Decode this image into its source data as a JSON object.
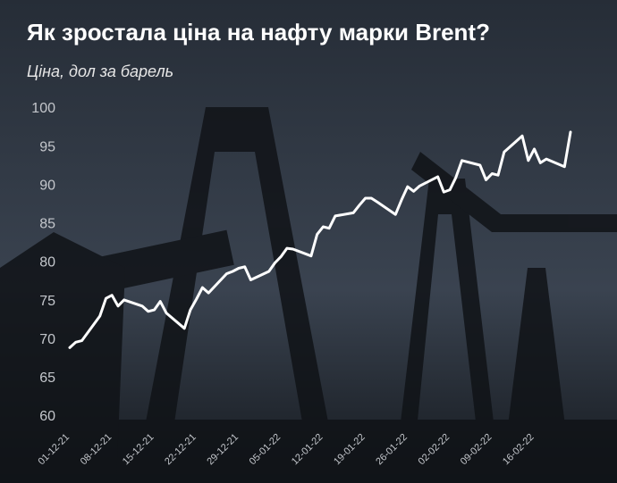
{
  "chart_data": {
    "type": "line",
    "title": "Як зростала ціна на нафту марки Brent?",
    "subtitle": "Ціна, дол за барель",
    "x": [
      "01-12-21",
      "02-12-21",
      "03-12-21",
      "06-12-21",
      "07-12-21",
      "08-12-21",
      "09-12-21",
      "10-12-21",
      "13-12-21",
      "14-12-21",
      "15-12-21",
      "16-12-21",
      "17-12-21",
      "20-12-21",
      "21-12-21",
      "22-12-21",
      "23-12-21",
      "24-12-21",
      "27-12-21",
      "28-12-21",
      "29-12-21",
      "30-12-21",
      "31-12-21",
      "03-01-22",
      "04-01-22",
      "05-01-22",
      "06-01-22",
      "07-01-22",
      "10-01-22",
      "11-01-22",
      "12-01-22",
      "13-01-22",
      "14-01-22",
      "17-01-22",
      "18-01-22",
      "19-01-22",
      "20-01-22",
      "21-01-22",
      "24-01-22",
      "25-01-22",
      "26-01-22",
      "27-01-22",
      "28-01-22",
      "31-01-22",
      "01-02-22",
      "02-02-22",
      "03-02-22",
      "04-02-22",
      "07-02-22",
      "08-02-22",
      "09-02-22",
      "10-02-22",
      "11-02-22",
      "14-02-22",
      "15-02-22",
      "16-02-22",
      "17-02-22",
      "18-02-22",
      "21-02-22",
      "22-02-22"
    ],
    "series": [
      {
        "name": "Brent",
        "color": "#ffffff",
        "values": [
          69.0,
          69.7,
          69.9,
          73.1,
          75.4,
          75.8,
          74.4,
          75.2,
          74.4,
          73.7,
          73.9,
          75.0,
          73.5,
          71.5,
          73.9,
          75.3,
          76.8,
          76.1,
          78.6,
          78.9,
          79.3,
          79.5,
          77.8,
          78.9,
          80.0,
          80.8,
          81.9,
          81.8,
          80.9,
          83.7,
          84.7,
          84.5,
          86.1,
          86.5,
          87.5,
          88.4,
          88.4,
          87.9,
          86.3,
          88.2,
          89.9,
          89.3,
          90.0,
          91.2,
          89.2,
          89.5,
          91.1,
          93.3,
          92.7,
          90.8,
          91.6,
          91.4,
          94.4,
          96.5,
          93.3,
          94.8,
          93.0,
          93.5,
          92.5,
          97.0
        ]
      }
    ],
    "xticks": [
      "01-12-21",
      "08-12-21",
      "15-12-21",
      "22-12-21",
      "29-12-21",
      "05-01-22",
      "12-01-22",
      "19-01-22",
      "26-01-22",
      "02-02-22",
      "09-02-22",
      "16-02-22"
    ],
    "ylim": [
      60,
      100
    ],
    "yticks": [
      60,
      65,
      70,
      75,
      80,
      85,
      90,
      95,
      100
    ],
    "grid": false
  }
}
